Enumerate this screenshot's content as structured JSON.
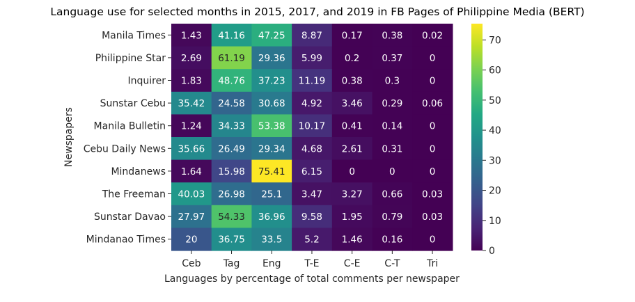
{
  "chart_data": {
    "type": "heatmap",
    "title": "Language use for selected months in 2015, 2017, and 2019 in FB Pages of Philippine Media (BERT)",
    "xlabel": "Languages by percentage of total comments per newspaper",
    "ylabel": "Newspapers",
    "columns": [
      "Ceb",
      "Tag",
      "Eng",
      "T-E",
      "C-E",
      "C-T",
      "Tri"
    ],
    "rows": [
      "Manila Times",
      "Philippine Star",
      "Inquirer",
      "Sunstar Cebu",
      "Manila Bulletin",
      "Cebu Daily News",
      "Mindanews",
      "The Freeman",
      "Sunstar Davao",
      "Mindanao Times"
    ],
    "values": [
      [
        1.43,
        41.16,
        47.25,
        8.87,
        0.17,
        0.38,
        0.02
      ],
      [
        2.69,
        61.19,
        29.36,
        5.99,
        0.2,
        0.37,
        0
      ],
      [
        1.83,
        48.76,
        37.23,
        11.19,
        0.38,
        0.3,
        0
      ],
      [
        35.42,
        24.58,
        30.68,
        4.92,
        3.46,
        0.29,
        0.06
      ],
      [
        1.24,
        34.33,
        53.38,
        10.17,
        0.41,
        0.14,
        0
      ],
      [
        35.66,
        26.49,
        29.34,
        4.68,
        2.61,
        0.31,
        0
      ],
      [
        1.64,
        15.98,
        75.41,
        6.15,
        0,
        0,
        0
      ],
      [
        40.03,
        26.98,
        25.1,
        3.47,
        3.27,
        0.66,
        0.03
      ],
      [
        27.97,
        54.33,
        36.96,
        9.58,
        1.95,
        0.79,
        0.03
      ],
      [
        20,
        36.75,
        33.5,
        5.2,
        1.46,
        0.16,
        0
      ]
    ],
    "colormap": "viridis",
    "vmin": 0,
    "vmax": 75.41,
    "colorbar_ticks": [
      0,
      10,
      20,
      30,
      40,
      50,
      60,
      70
    ]
  }
}
